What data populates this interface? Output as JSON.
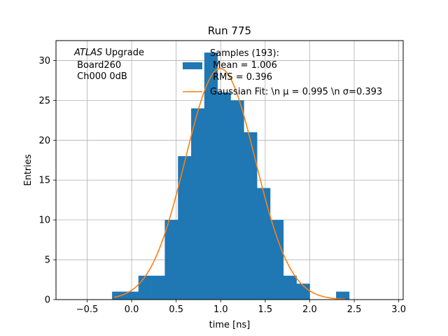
{
  "chart_data": {
    "type": "bar",
    "title": "Run 775",
    "xlabel": "time [ns]",
    "ylabel": "Entries",
    "xlim": [
      -0.85,
      3.05
    ],
    "ylim": [
      0,
      32.5
    ],
    "grid": true,
    "xticks": [
      -0.5,
      0.0,
      0.5,
      1.0,
      1.5,
      2.0,
      2.5,
      3.0
    ],
    "xtick_labels": [
      "−0.5",
      "0.0",
      "0.5",
      "1.0",
      "1.5",
      "2.0",
      "2.5",
      "3.0"
    ],
    "yticks": [
      0,
      5,
      10,
      15,
      20,
      25,
      30
    ],
    "ytick_labels": [
      "0",
      "5",
      "10",
      "15",
      "20",
      "25",
      "30"
    ],
    "bar_color": "#1f77b4",
    "fit_color": "#ff7f0e",
    "annotation": {
      "italic": "ATLAS",
      "rest": " Upgrade",
      "line2": " Board260",
      "line3": " Ch000 0dB"
    },
    "histogram": {
      "bin_width": 0.148,
      "bin_left_edges": [
        -0.22,
        -0.072,
        0.076,
        0.224,
        0.372,
        0.52,
        0.668,
        0.816,
        0.964,
        1.112,
        1.26,
        1.408,
        1.556,
        1.704,
        1.852,
        2.0,
        2.148,
        2.296
      ],
      "counts": [
        1,
        1,
        3,
        3,
        10,
        18,
        24,
        31,
        26,
        25,
        21,
        14,
        10,
        3,
        2,
        0,
        0,
        1
      ]
    },
    "fit": {
      "mu": 0.995,
      "sigma": 0.393,
      "amplitude": 29.0,
      "x_range": [
        -0.2,
        2.4
      ]
    },
    "legend": {
      "position": "upper-right",
      "hist_line1": "Samples (193):",
      "hist_line2": " Mean = 1.006",
      "hist_line3": " RMS = 0.396",
      "fit_label": "Gaussian Fit: \\n μ = 0.995 \\n σ=0.393"
    }
  }
}
